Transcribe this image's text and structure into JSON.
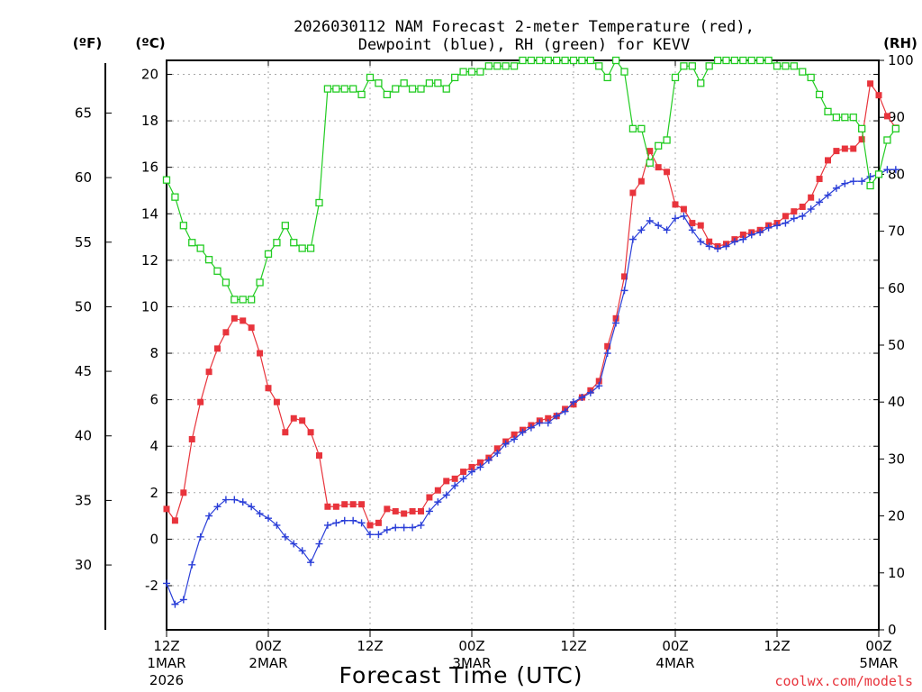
{
  "chart_data": {
    "type": "line",
    "title_line1": "2026030112 NAM Forecast 2-meter Temperature (red),",
    "title_line2": "Dewpoint (blue), RH (green) for KEVV",
    "xlabel": "Forecast Time (UTC)",
    "credit": "coolwx.com/models",
    "unit_left_f": "(ºF)",
    "unit_left_c": "(ºC)",
    "unit_right": "(RH)",
    "x_unit": "forecast hour",
    "xlim": [
      0,
      84
    ],
    "x_ticks": [
      {
        "hour": 0,
        "line1": "12Z",
        "line2": "1MAR",
        "line3": "2026"
      },
      {
        "hour": 12,
        "line1": "00Z",
        "line2": "2MAR",
        "line3": ""
      },
      {
        "hour": 24,
        "line1": "12Z",
        "line2": "",
        "line3": ""
      },
      {
        "hour": 36,
        "line1": "00Z",
        "line2": "3MAR",
        "line3": ""
      },
      {
        "hour": 48,
        "line1": "12Z",
        "line2": "",
        "line3": ""
      },
      {
        "hour": 60,
        "line1": "00Z",
        "line2": "4MAR",
        "line3": ""
      },
      {
        "hour": 72,
        "line1": "12Z",
        "line2": "",
        "line3": ""
      },
      {
        "hour": 84,
        "line1": "00Z",
        "line2": "5MAR",
        "line3": ""
      }
    ],
    "celsius_axis": {
      "min": -3.9,
      "max": 20.6,
      "ticks": [
        "-2",
        "0",
        "2",
        "4",
        "6",
        "8",
        "10",
        "12",
        "14",
        "16",
        "18",
        "20"
      ]
    },
    "fahrenheit_ticks": [
      "30",
      "35",
      "40",
      "45",
      "50",
      "55",
      "60",
      "65"
    ],
    "rh_axis": {
      "min": 0,
      "max": 100,
      "ticks": [
        "0",
        "10",
        "20",
        "30",
        "40",
        "50",
        "60",
        "70",
        "80",
        "90",
        "100"
      ]
    },
    "series": [
      {
        "name": "Temperature",
        "unit": "C",
        "color": "#e8343c",
        "marker": "filled-square",
        "values": [
          1.3,
          0.8,
          2.0,
          4.3,
          5.9,
          7.2,
          8.2,
          8.9,
          9.5,
          9.4,
          9.1,
          8.0,
          6.5,
          5.9,
          4.6,
          5.2,
          5.1,
          4.6,
          3.6,
          1.4,
          1.4,
          1.5,
          1.5,
          1.5,
          0.6,
          0.7,
          1.3,
          1.2,
          1.1,
          1.2,
          1.2,
          1.8,
          2.1,
          2.5,
          2.6,
          2.9,
          3.1,
          3.3,
          3.5,
          3.9,
          4.2,
          4.5,
          4.7,
          4.9,
          5.1,
          5.2,
          5.3,
          5.6,
          5.8,
          6.1,
          6.4,
          6.8,
          8.3,
          9.5,
          11.3,
          14.9,
          15.4,
          16.7,
          16.0,
          15.8,
          14.4,
          14.2,
          13.6,
          13.5,
          12.8,
          12.6,
          12.7,
          12.9,
          13.1,
          13.2,
          13.3,
          13.5,
          13.6,
          13.9,
          14.1,
          14.3,
          14.7,
          15.5,
          16.3,
          16.7,
          16.8,
          16.8,
          17.2,
          19.6,
          19.1,
          18.2,
          17.7
        ]
      },
      {
        "name": "Dewpoint",
        "unit": "C",
        "color": "#2b3fd8",
        "marker": "plus",
        "values": [
          -1.9,
          -2.8,
          -2.6,
          -1.1,
          0.1,
          1.0,
          1.4,
          1.7,
          1.7,
          1.6,
          1.4,
          1.1,
          0.9,
          0.6,
          0.1,
          -0.2,
          -0.5,
          -1.0,
          -0.2,
          0.6,
          0.7,
          0.8,
          0.8,
          0.7,
          0.2,
          0.2,
          0.4,
          0.5,
          0.5,
          0.5,
          0.6,
          1.2,
          1.6,
          1.9,
          2.3,
          2.6,
          2.9,
          3.1,
          3.4,
          3.7,
          4.1,
          4.3,
          4.6,
          4.8,
          5.0,
          5.0,
          5.3,
          5.5,
          5.9,
          6.1,
          6.3,
          6.6,
          8.0,
          9.3,
          10.7,
          12.9,
          13.3,
          13.7,
          13.5,
          13.3,
          13.8,
          13.9,
          13.3,
          12.8,
          12.6,
          12.5,
          12.6,
          12.8,
          12.9,
          13.1,
          13.2,
          13.4,
          13.5,
          13.6,
          13.8,
          13.9,
          14.2,
          14.5,
          14.8,
          15.1,
          15.3,
          15.4,
          15.4,
          15.6,
          15.7,
          15.9,
          15.9
        ]
      },
      {
        "name": "RH",
        "unit": "%",
        "color": "#22cc22",
        "marker": "open-square",
        "values": [
          79,
          76,
          71,
          68,
          67,
          65,
          63,
          61,
          58,
          58,
          58,
          61,
          66,
          68,
          71,
          68,
          67,
          67,
          75,
          95,
          95,
          95,
          95,
          94,
          97,
          96,
          94,
          95,
          96,
          95,
          95,
          96,
          96,
          95,
          97,
          98,
          98,
          98,
          99,
          99,
          99,
          99,
          100,
          100,
          100,
          100,
          100,
          100,
          100,
          100,
          100,
          99,
          97,
          100,
          98,
          88,
          88,
          82,
          85,
          86,
          97,
          99,
          99,
          96,
          99,
          100,
          100,
          100,
          100,
          100,
          100,
          100,
          99,
          99,
          99,
          98,
          97,
          94,
          91,
          90,
          90,
          90,
          88,
          78,
          80,
          86,
          88
        ]
      }
    ]
  }
}
